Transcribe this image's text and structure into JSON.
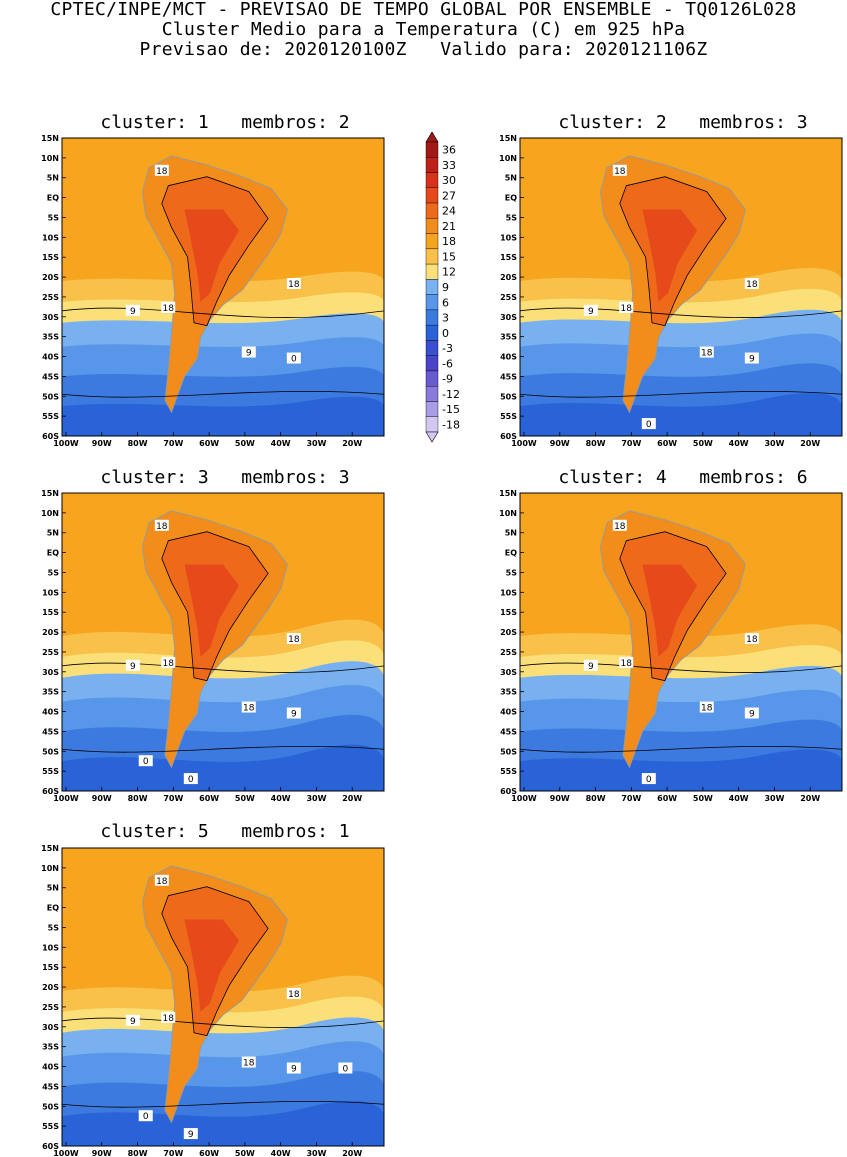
{
  "header": {
    "line1": "CPTEC/INPE/MCT - PREVISAO DE TEMPO GLOBAL POR ENSEMBLE - TQ0126L028",
    "line2": "Cluster Medio para a Temperatura (C) em 925 hPa",
    "line3": "Previsao de: 2020120100Z   Valido para: 2020121106Z"
  },
  "colorbar": {
    "labels": [
      "36",
      "33",
      "30",
      "27",
      "24",
      "21",
      "18",
      "15",
      "12",
      "9",
      "6",
      "3",
      "0",
      "-3",
      "-6",
      "-9",
      "-12",
      "-15",
      "-18"
    ],
    "colors": [
      "#a0181a",
      "#c0201a",
      "#d8321a",
      "#e64a1a",
      "#ee6a1a",
      "#f28c1a",
      "#f7a41e",
      "#f9c04a",
      "#fbe07a",
      "#78b0f0",
      "#5896ea",
      "#3c7ae0",
      "#2a62d8",
      "#3a4ed2",
      "#4a44c8",
      "#6a5ad0",
      "#8a7adc",
      "#ab9ce6",
      "#d3c8f2"
    ]
  },
  "axes": {
    "lat_labels": [
      "15N",
      "10N",
      "5N",
      "EQ",
      "5S",
      "10S",
      "15S",
      "20S",
      "25S",
      "30S",
      "35S",
      "40S",
      "45S",
      "50S",
      "55S",
      "60S"
    ],
    "lon_labels": [
      "100W",
      "90W",
      "80W",
      "70W",
      "60W",
      "50W",
      "40W",
      "30W",
      "20W"
    ]
  },
  "panels": [
    {
      "title": "cluster: 1   membros: 2",
      "contour_labels": [
        "18",
        "18",
        "18",
        "9",
        "9",
        "0"
      ]
    },
    {
      "title": "cluster: 2   membros: 3",
      "contour_labels": [
        "18",
        "18",
        "18",
        "9",
        "18",
        "9",
        "0"
      ]
    },
    {
      "title": "cluster: 3   membros: 3",
      "contour_labels": [
        "18",
        "18",
        "18",
        "9",
        "18",
        "9",
        "0",
        "0"
      ]
    },
    {
      "title": "cluster: 4   membros: 6",
      "contour_labels": [
        "18",
        "18",
        "18",
        "9",
        "18",
        "9",
        "0"
      ]
    },
    {
      "title": "cluster: 5   membros: 1",
      "contour_labels": [
        "18",
        "18",
        "18",
        "9",
        "18",
        "9",
        "9",
        "0",
        "0"
      ]
    }
  ]
}
